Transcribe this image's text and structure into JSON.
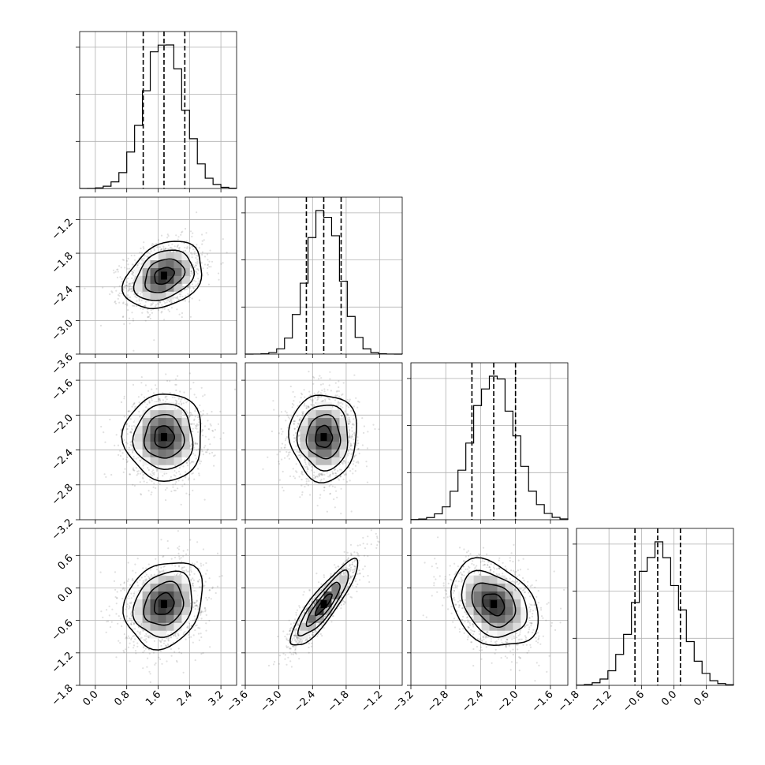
{
  "chart_data": {
    "type": "corner",
    "grid": true,
    "n_params": 4,
    "params": [
      {
        "mean": 1.75,
        "std": 0.5,
        "quantiles": [
          1.22,
          1.75,
          2.28
        ],
        "range": [
          -0.4,
          3.6
        ],
        "ticks": [
          0.0,
          0.8,
          1.6,
          2.4,
          3.2
        ],
        "tick_labels": [
          "0.0",
          "0.8",
          "1.6",
          "2.4",
          "3.2"
        ]
      },
      {
        "mean": -2.2,
        "std": 0.3,
        "quantiles": [
          -2.51,
          -2.2,
          -1.89
        ],
        "range": [
          -3.6,
          -0.8
        ],
        "ticks": [
          -3.6,
          -3.0,
          -2.4,
          -1.8,
          -1.2
        ],
        "tick_labels": [
          "−3.6",
          "−3.0",
          "−2.4",
          "−1.8",
          "−1.2"
        ]
      },
      {
        "mean": -2.25,
        "std": 0.25,
        "quantiles": [
          -2.5,
          -2.25,
          -2.0
        ],
        "range": [
          -3.2,
          -1.4
        ],
        "ticks": [
          -3.2,
          -2.8,
          -2.4,
          -2.0,
          -1.6
        ],
        "tick_labels": [
          "−3.2",
          "−2.8",
          "−2.4",
          "−2.0",
          "−1.6"
        ]
      },
      {
        "mean": -0.3,
        "std": 0.4,
        "quantiles": [
          -0.72,
          -0.3,
          0.12
        ],
        "range": [
          -1.8,
          1.1
        ],
        "ticks": [
          -1.8,
          -1.2,
          -0.6,
          0.0,
          0.6
        ],
        "tick_labels": [
          "−1.8",
          "−1.2",
          "−0.6",
          "0.0",
          "0.6"
        ]
      }
    ],
    "correlations": [
      {
        "row": 1,
        "col": 0,
        "rho": 0.3
      },
      {
        "row": 2,
        "col": 0,
        "rho": 0.0
      },
      {
        "row": 2,
        "col": 1,
        "rho": 0.0
      },
      {
        "row": 3,
        "col": 0,
        "rho": 0.2
      },
      {
        "row": 3,
        "col": 1,
        "rho": 0.88
      },
      {
        "row": 3,
        "col": 2,
        "rho": -0.3
      }
    ],
    "hist_bins": 20,
    "contour_levels_sigma": [
      0.5,
      1.0,
      1.5,
      2.0
    ]
  }
}
